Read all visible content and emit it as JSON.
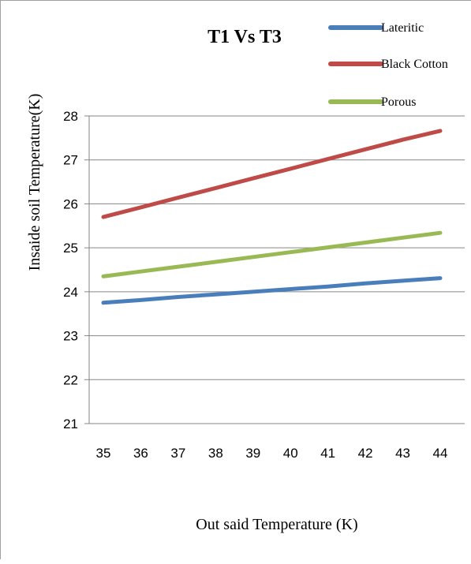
{
  "chart_data": {
    "type": "line",
    "title": "T1 Vs T3",
    "xlabel": "Out said Temperature (K)",
    "ylabel": "Insaide soil Temperature(K)",
    "x": [
      35,
      36,
      37,
      38,
      39,
      40,
      41,
      42,
      43,
      44
    ],
    "ylim": [
      21,
      28
    ],
    "yticks": [
      21,
      22,
      23,
      24,
      25,
      26,
      27,
      28
    ],
    "grid": true,
    "legend_position": "top-right",
    "series": [
      {
        "name": "Lateritic",
        "color": "#4a7ebb",
        "values": [
          23.75,
          23.81,
          23.88,
          23.94,
          24.0,
          24.06,
          24.12,
          24.19,
          24.25,
          24.31
        ]
      },
      {
        "name": "Black Cotton",
        "color": "#be4b48",
        "values": [
          25.7,
          25.92,
          26.14,
          26.36,
          26.58,
          26.8,
          27.02,
          27.24,
          27.46,
          27.66
        ]
      },
      {
        "name": "Porous",
        "color": "#98b954",
        "values": [
          24.35,
          24.46,
          24.57,
          24.68,
          24.79,
          24.9,
          25.01,
          25.12,
          25.23,
          25.34
        ]
      }
    ]
  }
}
